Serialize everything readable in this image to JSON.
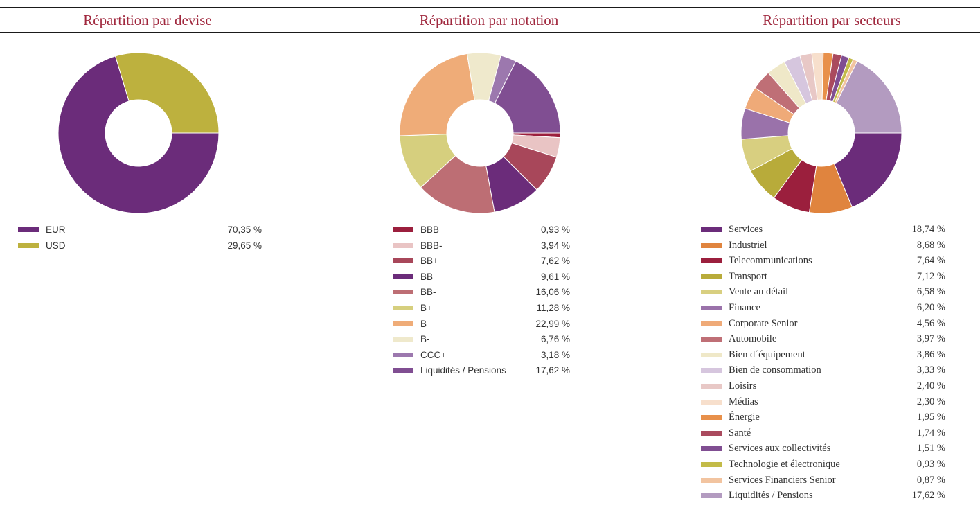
{
  "chart_data": [
    {
      "type": "pie",
      "title": "Répartition par devise",
      "categories": [
        "EUR",
        "USD"
      ],
      "values": [
        70.35,
        29.65
      ],
      "value_labels": [
        "70,35 %",
        "29,65 %"
      ],
      "colors": [
        "#6b2c7a",
        "#bdb13e"
      ],
      "donut": true,
      "legend_position": "bottom"
    },
    {
      "type": "pie",
      "title": "Répartition par notation",
      "categories": [
        "BBB",
        "BBB-",
        "BB+",
        "BB",
        "BB-",
        "B+",
        "B",
        "B-",
        "CCC+",
        "Liquidités / Pensions"
      ],
      "values": [
        0.93,
        3.94,
        7.62,
        9.61,
        16.06,
        11.28,
        22.99,
        6.76,
        3.18,
        17.62
      ],
      "value_labels": [
        "0,93 %",
        "3,94 %",
        "7,62 %",
        "9,61 %",
        "16,06 %",
        "11,28 %",
        "22,99 %",
        "6,76 %",
        "3,18 %",
        "17,62 %"
      ],
      "colors": [
        "#9b1f3d",
        "#e9c4c4",
        "#a8475a",
        "#6b2c7a",
        "#bd6e74",
        "#d6cf7e",
        "#efac78",
        "#efe9cc",
        "#9c78ae",
        "#804e92"
      ],
      "donut": true,
      "legend_position": "bottom"
    },
    {
      "type": "pie",
      "title": "Répartition par secteurs",
      "categories": [
        "Services",
        "Industriel",
        "Telecommunications",
        "Transport",
        "Vente au détail",
        "Finance",
        "Corporate Senior",
        "Automobile",
        "Bien d´équipement",
        "Bien de consommation",
        "Loisirs",
        "Médias",
        "Énergie",
        "Santé",
        "Services aux collectivités",
        "Technologie et électronique",
        "Services Financiers Senior",
        "Liquidités / Pensions"
      ],
      "values": [
        18.74,
        8.68,
        7.64,
        7.12,
        6.58,
        6.2,
        4.56,
        3.97,
        3.86,
        3.33,
        2.4,
        2.3,
        1.95,
        1.74,
        1.51,
        0.93,
        0.87,
        17.62
      ],
      "value_labels": [
        "18,74 %",
        "8,68 %",
        "7,64 %",
        "7,12 %",
        "6,58 %",
        "6,20 %",
        "4,56 %",
        "3,97 %",
        "3,86 %",
        "3,33 %",
        "2,40 %",
        "2,30 %",
        "1,95 %",
        "1,74 %",
        "1,51 %",
        "0,93 %",
        "0,87 %",
        "17,62 %"
      ],
      "colors": [
        "#6b2c7a",
        "#e0843e",
        "#9b1f3d",
        "#b8ab3a",
        "#d8cf80",
        "#9a72aa",
        "#efaa78",
        "#bf6f76",
        "#efe8c8",
        "#d6c6de",
        "#e8c8c6",
        "#f7dfcc",
        "#e8904a",
        "#aa4a5e",
        "#804e92",
        "#c3bb48",
        "#f2c4a0",
        "#b39bc0"
      ],
      "donut": true,
      "legend_position": "bottom"
    }
  ]
}
